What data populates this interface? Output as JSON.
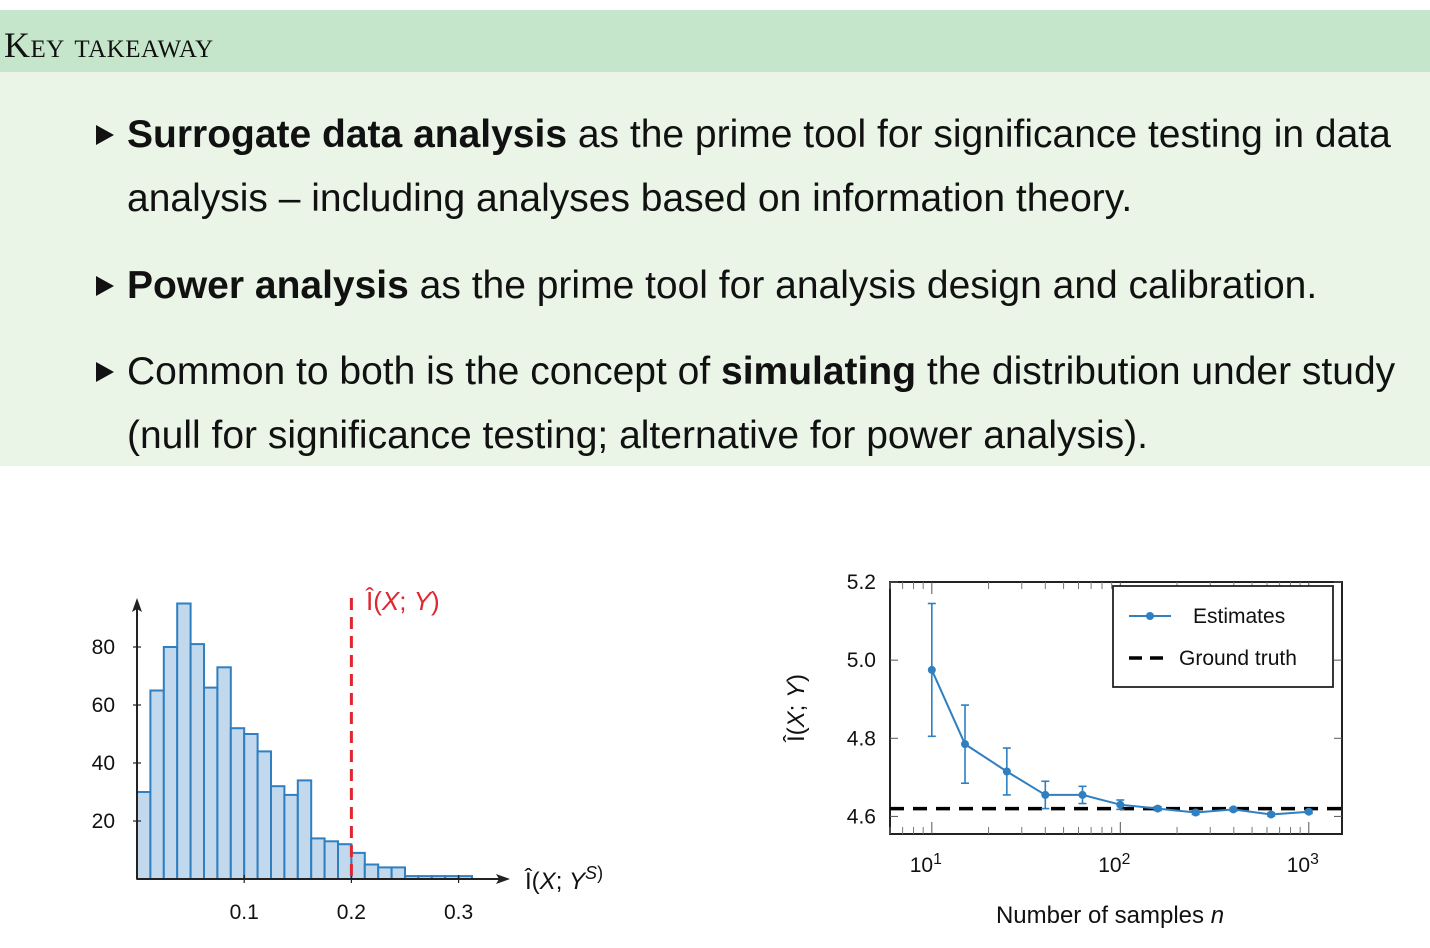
{
  "takeaway": {
    "title": "Key takeaway",
    "bullets": [
      {
        "bold": "Surrogate data analysis",
        "rest": " as the prime tool for significance testing in data analysis – including analyses based on information theory."
      },
      {
        "bold": "Power analysis",
        "rest": " as the prime tool for analysis design and calibration."
      },
      {
        "pre": "Common to both is the concept of ",
        "bold": "simulating",
        "rest": " the distribution under study (null for significance testing; alternative for power analysis)."
      }
    ]
  },
  "chart_data": [
    {
      "type": "bar",
      "xlabel": "Î(X; Y^S)",
      "ylabel": "",
      "xlim": [
        0,
        0.37
      ],
      "ylim": [
        0,
        95
      ],
      "xticks": [
        0.1,
        0.2,
        0.3
      ],
      "yticks": [
        20,
        40,
        60,
        80
      ],
      "bin_width": 0.0125,
      "bin_starts": [
        0.0,
        0.0125,
        0.025,
        0.0375,
        0.05,
        0.0625,
        0.075,
        0.0875,
        0.1,
        0.1125,
        0.125,
        0.1375,
        0.15,
        0.1625,
        0.175,
        0.1875,
        0.2,
        0.2125,
        0.225,
        0.2375,
        0.25,
        0.2625,
        0.275,
        0.2875,
        0.3
      ],
      "values": [
        30,
        65,
        80,
        95,
        81,
        66,
        73,
        52,
        50,
        44,
        32,
        29,
        34,
        14,
        13,
        12,
        9,
        5,
        4,
        4,
        1,
        1,
        1,
        1,
        1
      ],
      "annotation": {
        "label": "Î(X; Y)",
        "x": 0.2,
        "color": "#e0262f"
      },
      "bar_color": "#c2d8ec",
      "edge_color": "#2f7fc1"
    },
    {
      "type": "line",
      "xscale": "log",
      "xlabel": "Number of samples n",
      "ylabel": "Î(X; Y)",
      "xlim": [
        6,
        1500
      ],
      "ylim": [
        4.555,
        5.2
      ],
      "xticks": [
        "10^1",
        "10^2",
        "10^3"
      ],
      "yticks": [
        4.6,
        4.8,
        5.0,
        5.2
      ],
      "series": [
        {
          "name": "Estimates",
          "x": [
            10,
            15,
            25,
            40,
            63,
            100,
            158,
            251,
            398,
            631,
            1000
          ],
          "y": [
            4.975,
            4.785,
            4.715,
            4.655,
            4.655,
            4.63,
            4.62,
            4.61,
            4.618,
            4.605,
            4.612
          ],
          "err": [
            0.17,
            0.1,
            0.06,
            0.035,
            0.022,
            0.012,
            0.005,
            0.005,
            0.004,
            0.004,
            0.004
          ],
          "color": "#2f7fc1"
        },
        {
          "name": "Ground truth",
          "y": 4.62,
          "style": "dashed",
          "color": "#000000"
        }
      ],
      "legend": "top-right"
    }
  ]
}
